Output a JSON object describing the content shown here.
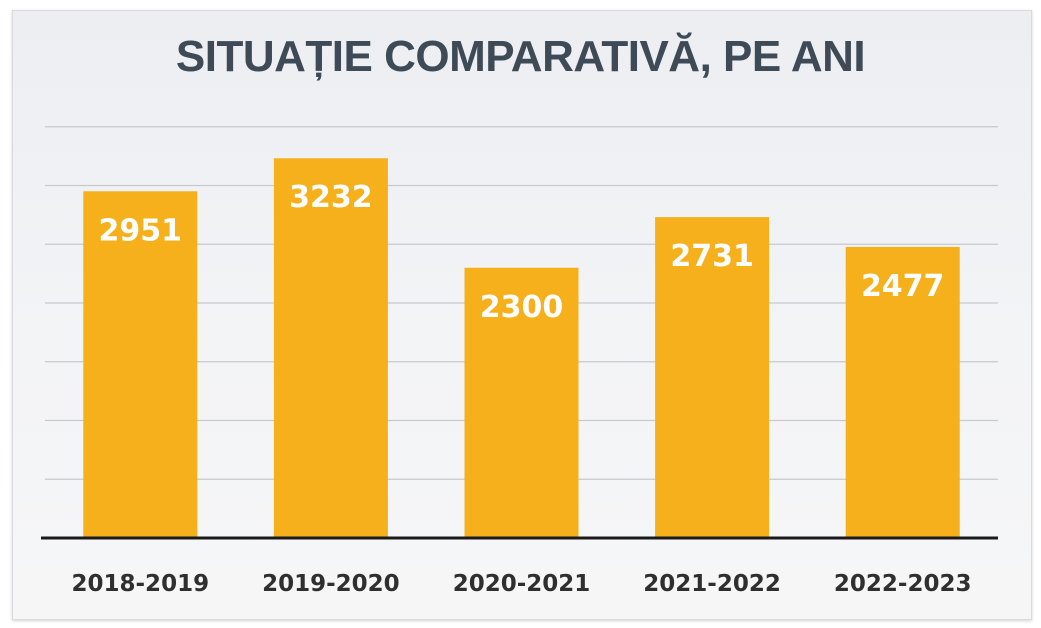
{
  "chart_data": {
    "type": "bar",
    "title": "SITUAȚIE COMPARATIVĂ, PE ANI",
    "categories": [
      "2018-2019",
      "2019-2020",
      "2020-2021",
      "2021-2022",
      "2022-2023"
    ],
    "values": [
      2951,
      3232,
      2300,
      2731,
      2477
    ],
    "data_labels": [
      "2951",
      "3232",
      "2300",
      "2731",
      "2477"
    ],
    "xlabel": "",
    "ylabel": "",
    "ylim": [
      0,
      3500
    ],
    "grid": true,
    "bar_color": "#f5b01c",
    "label_color": "#ffffff",
    "axis_color": "#1a1a1a",
    "grid_color": "#c7c9ce"
  }
}
